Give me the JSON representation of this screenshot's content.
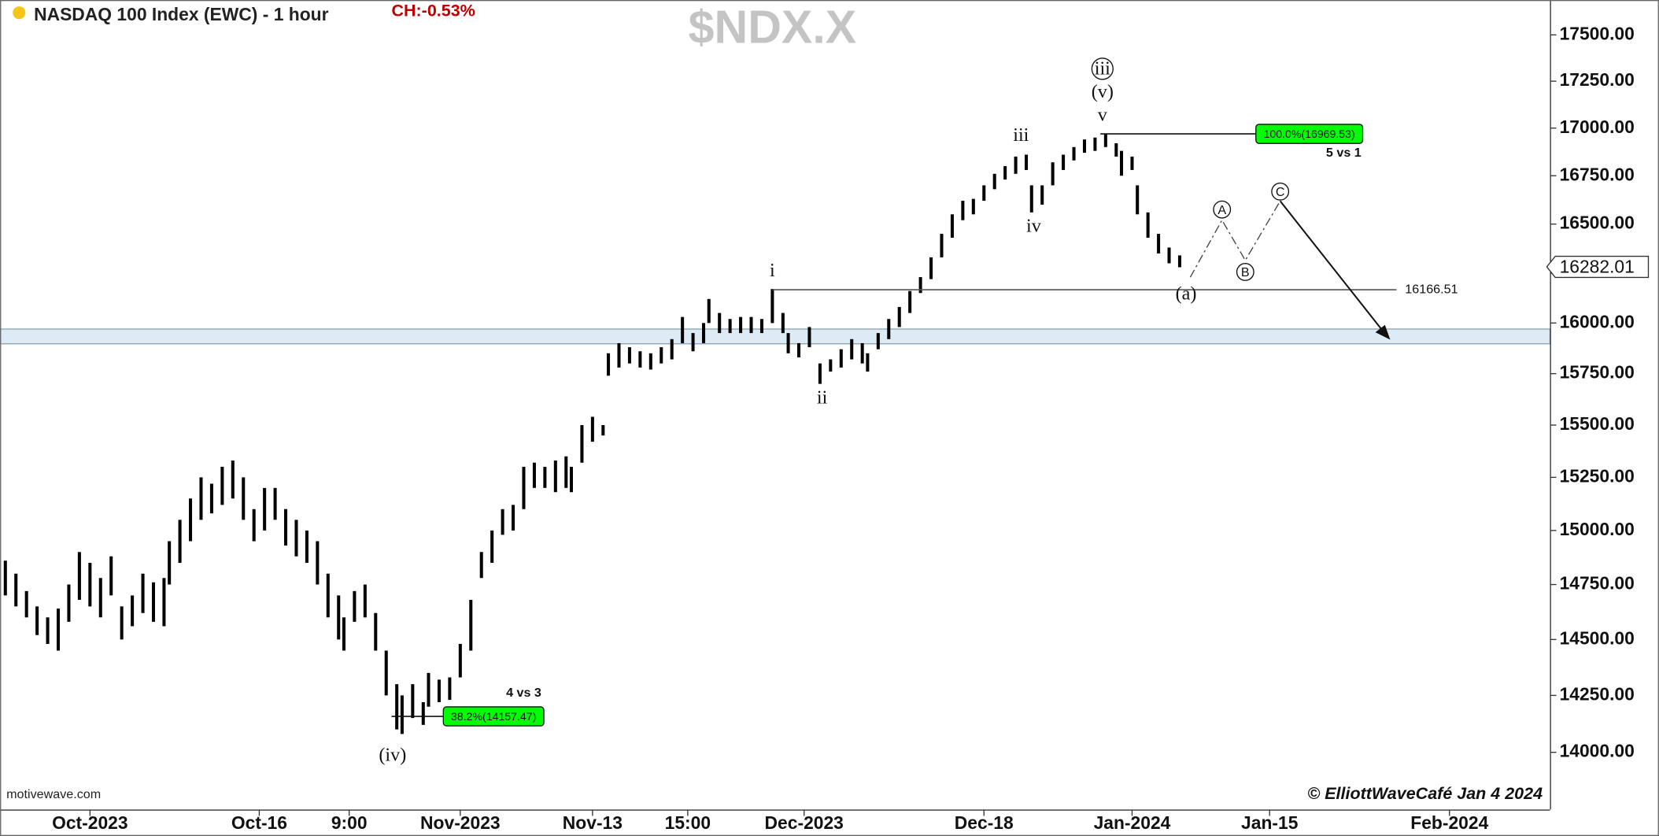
{
  "chart_data": {
    "type": "ohlc",
    "title": "NASDAQ 100 Index (EWC) - 1 hour",
    "change": "CH:-0.53%",
    "symbol": "$NDX.X",
    "source": "motivewave.com",
    "copyright": "© ElliottWaveCafé Jan 4 2024",
    "log_scale": true,
    "grid": false,
    "color": "#000000",
    "xlim": [
      0,
      293
    ],
    "ylim": [
      13753,
      17691
    ],
    "xticks": [
      {
        "value": 17,
        "label": "Oct-2023"
      },
      {
        "value": 49,
        "label": "Oct-16"
      },
      {
        "value": 66,
        "label": "9:00"
      },
      {
        "value": 87,
        "label": "Nov-2023"
      },
      {
        "value": 112,
        "label": "Nov-13"
      },
      {
        "value": 130,
        "label": "15:00"
      },
      {
        "value": 152,
        "label": "Dec-2023"
      },
      {
        "value": 186,
        "label": "Dec-18"
      },
      {
        "value": 214,
        "label": "Jan-2024"
      },
      {
        "value": 240,
        "label": "Jan-15"
      },
      {
        "value": 274,
        "label": "Feb-2024"
      }
    ],
    "yticks": [
      {
        "value": 14000,
        "label": "14000.00"
      },
      {
        "value": 14250,
        "label": "14250.00"
      },
      {
        "value": 14500,
        "label": "14500.00"
      },
      {
        "value": 14750,
        "label": "14750.00"
      },
      {
        "value": 15000,
        "label": "15000.00"
      },
      {
        "value": 15250,
        "label": "15250.00"
      },
      {
        "value": 15500,
        "label": "15500.00"
      },
      {
        "value": 15750,
        "label": "15750.00"
      },
      {
        "value": 16000,
        "label": "16000.00"
      },
      {
        "value": 16250,
        "label": "16250.00"
      },
      {
        "value": 16500,
        "label": "16500.00"
      },
      {
        "value": 16750,
        "label": "16750.00"
      },
      {
        "value": 17000,
        "label": "17000.00"
      },
      {
        "value": 17250,
        "label": "17250.00"
      },
      {
        "value": 17500,
        "label": "17500.00"
      }
    ],
    "x": [
      1,
      3,
      5,
      7,
      9,
      11,
      13,
      15,
      17,
      19,
      21,
      23,
      25,
      27,
      29,
      31,
      32,
      34,
      36,
      38,
      40,
      42,
      44,
      46,
      48,
      50,
      52,
      54,
      56,
      58,
      60,
      62,
      64,
      65,
      67,
      69,
      71,
      73,
      75,
      76,
      78,
      80,
      81,
      83,
      85,
      87,
      89,
      91,
      93,
      95,
      97,
      99,
      101,
      103,
      105,
      107,
      108,
      110,
      112,
      114,
      115,
      117,
      119,
      121,
      123,
      125,
      127,
      129,
      131,
      133,
      134,
      136,
      138,
      140,
      142,
      144,
      146,
      148,
      149,
      151,
      153,
      155,
      157,
      159,
      161,
      163,
      164,
      166,
      168,
      170,
      172,
      174,
      176,
      178,
      180,
      182,
      184,
      186,
      188,
      190,
      192,
      194,
      195,
      197,
      199,
      201,
      203,
      205,
      207,
      209,
      211,
      212,
      214,
      215,
      217,
      219,
      221,
      223
    ],
    "high": [
      14860,
      14800,
      14720,
      14650,
      14600,
      14640,
      14750,
      14900,
      14850,
      14780,
      14880,
      14650,
      14700,
      14800,
      14760,
      14780,
      14950,
      15050,
      15150,
      15250,
      15220,
      15300,
      15330,
      15250,
      15100,
      15200,
      15200,
      15100,
      15050,
      15000,
      14950,
      14800,
      14700,
      14600,
      14720,
      14750,
      14620,
      14450,
      14300,
      14250,
      14300,
      14220,
      14350,
      14320,
      14330,
      14480,
      14680,
      14900,
      15000,
      15100,
      15120,
      15300,
      15320,
      15300,
      15330,
      15350,
      15300,
      15500,
      15540,
      15500,
      15850,
      15900,
      15880,
      15860,
      15850,
      15880,
      15920,
      16030,
      15950,
      16000,
      16120,
      16050,
      16020,
      16030,
      16030,
      16020,
      16170,
      16050,
      15950,
      15900,
      15980,
      15800,
      15820,
      15870,
      15920,
      15900,
      15850,
      15950,
      16020,
      16080,
      16160,
      16230,
      16330,
      16450,
      16550,
      16620,
      16630,
      16700,
      16760,
      16800,
      16850,
      16860,
      16700,
      16700,
      16820,
      16860,
      16900,
      16940,
      16950,
      16970,
      16920,
      16880,
      16850,
      16700,
      16560,
      16450,
      16380,
      16340
    ],
    "low": [
      14700,
      14650,
      14600,
      14520,
      14480,
      14450,
      14580,
      14680,
      14650,
      14600,
      14700,
      14500,
      14560,
      14620,
      14580,
      14560,
      14750,
      14850,
      14950,
      15050,
      15080,
      15120,
      15150,
      15050,
      14950,
      15000,
      15050,
      14930,
      14880,
      14850,
      14750,
      14600,
      14500,
      14450,
      14580,
      14600,
      14450,
      14250,
      14100,
      14080,
      14150,
      14120,
      14200,
      14220,
      14230,
      14330,
      14450,
      14780,
      14850,
      14980,
      15000,
      15100,
      15200,
      15200,
      15180,
      15200,
      15180,
      15320,
      15420,
      15450,
      15740,
      15780,
      15800,
      15780,
      15770,
      15800,
      15820,
      15900,
      15860,
      15900,
      16000,
      15950,
      15950,
      15950,
      15950,
      15950,
      16000,
      15950,
      15850,
      15830,
      15880,
      15700,
      15760,
      15780,
      15820,
      15800,
      15760,
      15870,
      15920,
      15980,
      16050,
      16150,
      16220,
      16330,
      16430,
      16520,
      16550,
      16620,
      16680,
      16730,
      16760,
      16780,
      16560,
      16600,
      16700,
      16780,
      16830,
      16870,
      16880,
      16900,
      16850,
      16750,
      16780,
      16550,
      16430,
      16350,
      16300,
      16280
    ],
    "zone": [
      15897,
      15970
    ],
    "zone_color": "#dcebf6",
    "reference_level": 16166.51,
    "last_price": 16282.01,
    "fib_levels": [
      {
        "label": "100.0%(16969.53)",
        "value": 16969.53
      },
      {
        "label": "38.2%(14157.47)",
        "value": 14157.47
      }
    ],
    "fib_color": "#00ff00",
    "notes": [
      "5 vs 1",
      "4 vs 3"
    ],
    "wave_labels": [
      "iii",
      "(v)",
      "v",
      "iii",
      "iv",
      "i",
      "ii",
      "(iv)",
      "(a)",
      "A",
      "B",
      "C"
    ]
  }
}
